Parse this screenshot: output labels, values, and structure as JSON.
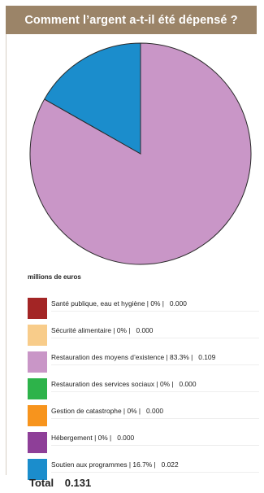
{
  "header": {
    "title": "Comment l’argent a-t-il été dépensé ?",
    "background": "#9b8468"
  },
  "unit_label": "millions de euros",
  "chart_data": {
    "type": "pie",
    "title": "Comment l’argent a-t-il été dépensé ?",
    "unit": "millions de euros",
    "slices": [
      {
        "label": "Santé publique, eau et hygiène",
        "percent_text": "0%",
        "value_text": "0.000",
        "value": 0.0,
        "color": "#a32525"
      },
      {
        "label": "Sécurité alimentaire",
        "percent_text": "0%",
        "value_text": "0.000",
        "value": 0.0,
        "color": "#f8cc8a"
      },
      {
        "label": "Restauration des moyens d’existence",
        "percent_text": "83.3%",
        "value_text": "0.109",
        "value": 0.109,
        "color": "#c996c7"
      },
      {
        "label": "Restauration des services sociaux",
        "percent_text": "0%",
        "value_text": "0.000",
        "value": 0.0,
        "color": "#2db34a"
      },
      {
        "label": "Gestion de catastrophe",
        "percent_text": "0%",
        "value_text": "0.000",
        "value": 0.0,
        "color": "#f7941d"
      },
      {
        "label": "Hébergement",
        "percent_text": "0%",
        "value_text": "0.000",
        "value": 0.0,
        "color": "#8e3f98"
      },
      {
        "label": "Soutien aux programmes",
        "percent_text": "16.7%",
        "value_text": "0.022",
        "value": 0.022,
        "color": "#1b8dcc"
      }
    ],
    "total_label": "Total",
    "total_value": "0.131"
  }
}
